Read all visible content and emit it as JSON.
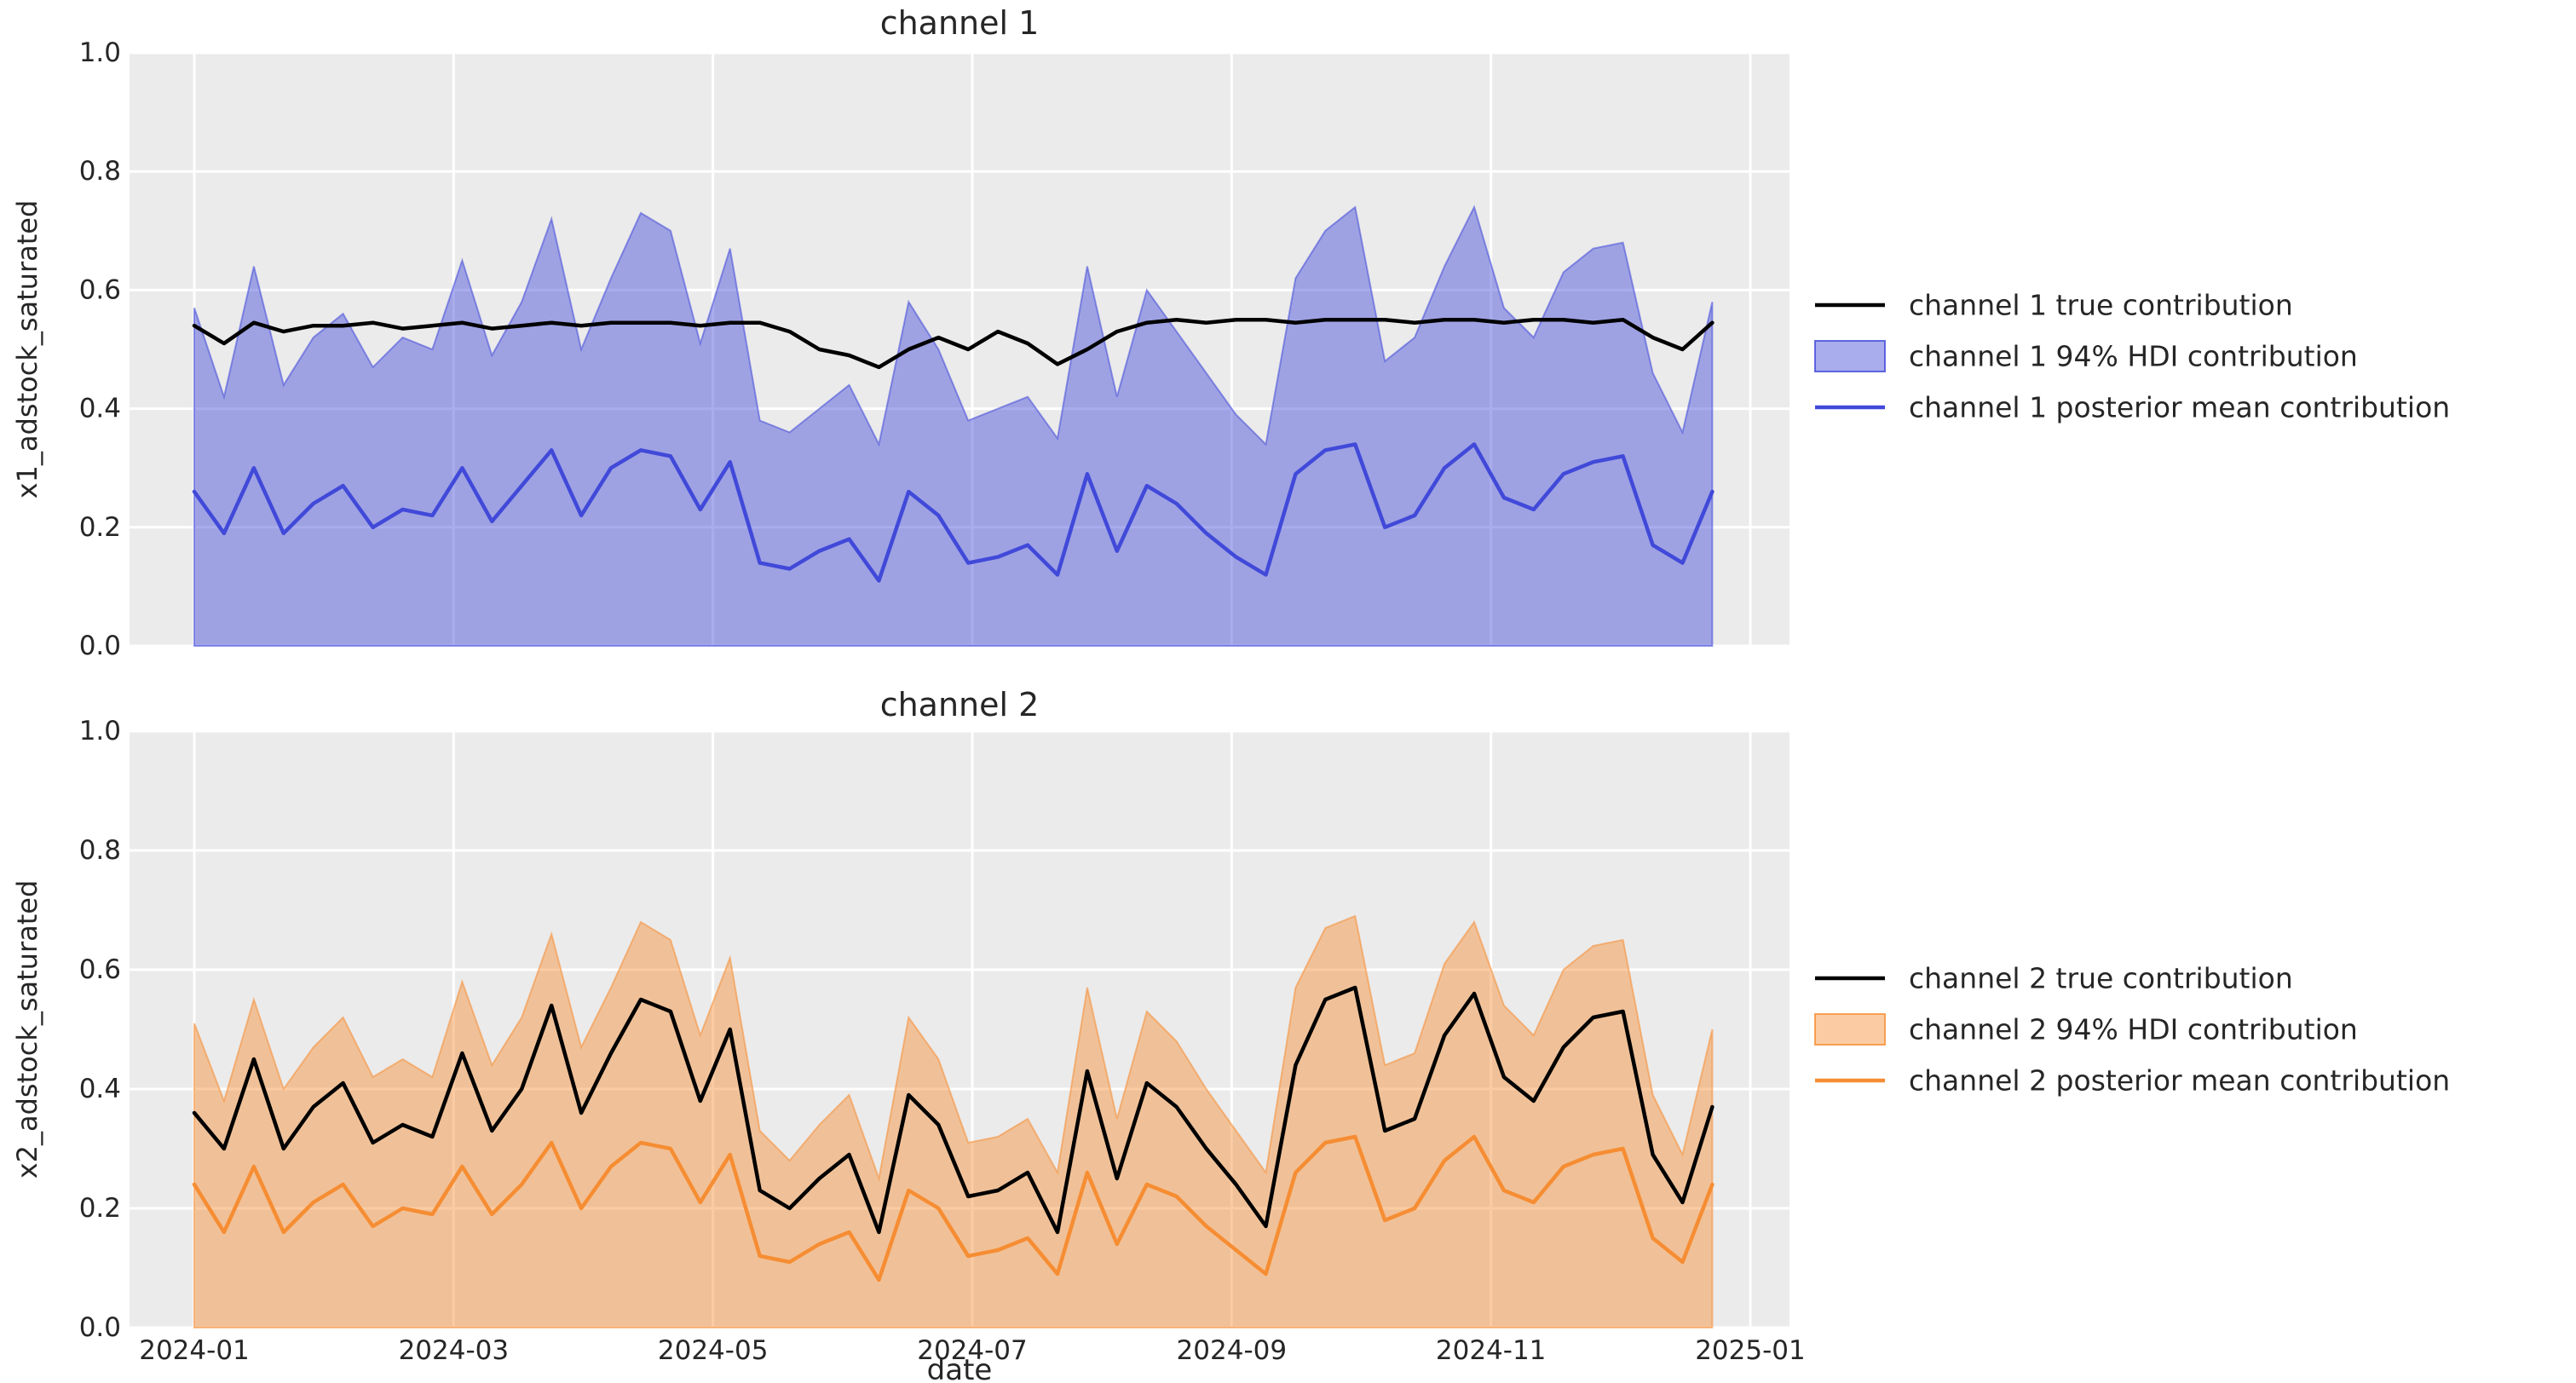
{
  "figure": {
    "background": "#ffffff",
    "plot_background": "#ebebeb",
    "grid_color": "#ffffff",
    "text_color": "#262626",
    "true_line_color": "#000000",
    "channel1_color": "#4149d9",
    "channel1_fill": "rgba(65,73,217,0.45)",
    "channel2_color": "#f68d33",
    "channel2_fill": "rgba(246,141,51,0.45)"
  },
  "chart_data": [
    {
      "type": "area",
      "title": "channel 1",
      "xlabel": "",
      "ylabel": "x1_adstock_saturated",
      "ylim": [
        0.0,
        1.0
      ],
      "y_tick_values": [
        0.0,
        0.2,
        0.4,
        0.6,
        0.8,
        1.0
      ],
      "y_ticks": [
        "0.0",
        "0.2",
        "0.4",
        "0.6",
        "0.8",
        "1.0"
      ],
      "x_ticks": [
        "2024-01",
        "2024-03",
        "2024-05",
        "2024-07",
        "2024-09",
        "2024-11",
        "2025-01"
      ],
      "show_x_tick_labels": false,
      "grid": true,
      "legend_position": "right",
      "x": [
        "2024-01-01",
        "2024-01-08",
        "2024-01-15",
        "2024-01-22",
        "2024-01-29",
        "2024-02-05",
        "2024-02-12",
        "2024-02-19",
        "2024-02-26",
        "2024-03-04",
        "2024-03-11",
        "2024-03-18",
        "2024-03-25",
        "2024-04-01",
        "2024-04-08",
        "2024-04-15",
        "2024-04-22",
        "2024-04-29",
        "2024-05-06",
        "2024-05-13",
        "2024-05-20",
        "2024-05-27",
        "2024-06-03",
        "2024-06-10",
        "2024-06-17",
        "2024-06-24",
        "2024-07-01",
        "2024-07-08",
        "2024-07-15",
        "2024-07-22",
        "2024-07-29",
        "2024-08-05",
        "2024-08-12",
        "2024-08-19",
        "2024-08-26",
        "2024-09-02",
        "2024-09-09",
        "2024-09-16",
        "2024-09-23",
        "2024-09-30",
        "2024-10-07",
        "2024-10-14",
        "2024-10-21",
        "2024-10-28",
        "2024-11-04",
        "2024-11-11",
        "2024-11-18",
        "2024-11-25",
        "2024-12-02",
        "2024-12-09",
        "2024-12-16",
        "2024-12-23"
      ],
      "series": [
        {
          "name": "channel 1 true contribution",
          "role": "true",
          "swatch": "line",
          "color": "#000000",
          "values": [
            0.54,
            0.51,
            0.545,
            0.53,
            0.54,
            0.54,
            0.545,
            0.535,
            0.54,
            0.545,
            0.535,
            0.54,
            0.545,
            0.54,
            0.545,
            0.545,
            0.545,
            0.54,
            0.545,
            0.545,
            0.53,
            0.5,
            0.49,
            0.47,
            0.5,
            0.52,
            0.5,
            0.53,
            0.51,
            0.475,
            0.5,
            0.53,
            0.545,
            0.55,
            0.545,
            0.55,
            0.55,
            0.545,
            0.55,
            0.55,
            0.55,
            0.545,
            0.55,
            0.55,
            0.545,
            0.55,
            0.55,
            0.545,
            0.55,
            0.52,
            0.5,
            0.545
          ]
        },
        {
          "name": "channel 1 94% HDI contribution",
          "role": "hdi",
          "swatch": "patch",
          "color": "#4149d9",
          "fill": "rgba(65,73,217,0.45)",
          "lower": 0,
          "upper": [
            0.57,
            0.42,
            0.64,
            0.44,
            0.52,
            0.56,
            0.47,
            0.52,
            0.5,
            0.65,
            0.49,
            0.58,
            0.72,
            0.5,
            0.62,
            0.73,
            0.7,
            0.51,
            0.67,
            0.38,
            0.36,
            0.4,
            0.44,
            0.34,
            0.58,
            0.5,
            0.38,
            0.4,
            0.42,
            0.35,
            0.64,
            0.42,
            0.6,
            0.53,
            0.46,
            0.39,
            0.34,
            0.62,
            0.7,
            0.74,
            0.48,
            0.52,
            0.64,
            0.74,
            0.57,
            0.52,
            0.63,
            0.67,
            0.68,
            0.46,
            0.36,
            0.58
          ]
        },
        {
          "name": "channel 1 posterior mean contribution",
          "role": "mean",
          "swatch": "line",
          "color": "#4149d9",
          "values": [
            0.26,
            0.19,
            0.3,
            0.19,
            0.24,
            0.27,
            0.2,
            0.23,
            0.22,
            0.3,
            0.21,
            0.27,
            0.33,
            0.22,
            0.3,
            0.33,
            0.32,
            0.23,
            0.31,
            0.14,
            0.13,
            0.16,
            0.18,
            0.11,
            0.26,
            0.22,
            0.14,
            0.15,
            0.17,
            0.12,
            0.29,
            0.16,
            0.27,
            0.24,
            0.19,
            0.15,
            0.12,
            0.29,
            0.33,
            0.34,
            0.2,
            0.22,
            0.3,
            0.34,
            0.25,
            0.23,
            0.29,
            0.31,
            0.32,
            0.17,
            0.14,
            0.26
          ]
        }
      ]
    },
    {
      "type": "area",
      "title": "channel 2",
      "xlabel": "date",
      "ylabel": "x2_adstock_saturated",
      "ylim": [
        0.0,
        1.0
      ],
      "y_tick_values": [
        0.0,
        0.2,
        0.4,
        0.6,
        0.8,
        1.0
      ],
      "y_ticks": [
        "0.0",
        "0.2",
        "0.4",
        "0.6",
        "0.8",
        "1.0"
      ],
      "x_ticks": [
        "2024-01",
        "2024-03",
        "2024-05",
        "2024-07",
        "2024-09",
        "2024-11",
        "2025-01"
      ],
      "show_x_tick_labels": true,
      "grid": true,
      "legend_position": "right",
      "x": [
        "2024-01-01",
        "2024-01-08",
        "2024-01-15",
        "2024-01-22",
        "2024-01-29",
        "2024-02-05",
        "2024-02-12",
        "2024-02-19",
        "2024-02-26",
        "2024-03-04",
        "2024-03-11",
        "2024-03-18",
        "2024-03-25",
        "2024-04-01",
        "2024-04-08",
        "2024-04-15",
        "2024-04-22",
        "2024-04-29",
        "2024-05-06",
        "2024-05-13",
        "2024-05-20",
        "2024-05-27",
        "2024-06-03",
        "2024-06-10",
        "2024-06-17",
        "2024-06-24",
        "2024-07-01",
        "2024-07-08",
        "2024-07-15",
        "2024-07-22",
        "2024-07-29",
        "2024-08-05",
        "2024-08-12",
        "2024-08-19",
        "2024-08-26",
        "2024-09-02",
        "2024-09-09",
        "2024-09-16",
        "2024-09-23",
        "2024-09-30",
        "2024-10-07",
        "2024-10-14",
        "2024-10-21",
        "2024-10-28",
        "2024-11-04",
        "2024-11-11",
        "2024-11-18",
        "2024-11-25",
        "2024-12-02",
        "2024-12-09",
        "2024-12-16",
        "2024-12-23"
      ],
      "series": [
        {
          "name": "channel 2 true contribution",
          "role": "true",
          "swatch": "line",
          "color": "#000000",
          "values": [
            0.36,
            0.3,
            0.45,
            0.3,
            0.37,
            0.41,
            0.31,
            0.34,
            0.32,
            0.46,
            0.33,
            0.4,
            0.54,
            0.36,
            0.46,
            0.55,
            0.53,
            0.38,
            0.5,
            0.23,
            0.2,
            0.25,
            0.29,
            0.16,
            0.39,
            0.34,
            0.22,
            0.23,
            0.26,
            0.16,
            0.43,
            0.25,
            0.41,
            0.37,
            0.3,
            0.24,
            0.17,
            0.44,
            0.55,
            0.57,
            0.33,
            0.35,
            0.49,
            0.56,
            0.42,
            0.38,
            0.47,
            0.52,
            0.53,
            0.29,
            0.21,
            0.37
          ]
        },
        {
          "name": "channel 2 94% HDI contribution",
          "role": "hdi",
          "swatch": "patch",
          "color": "#f68d33",
          "fill": "rgba(246,141,51,0.45)",
          "lower": 0,
          "upper": [
            0.51,
            0.38,
            0.55,
            0.4,
            0.47,
            0.52,
            0.42,
            0.45,
            0.42,
            0.58,
            0.44,
            0.52,
            0.66,
            0.47,
            0.57,
            0.68,
            0.65,
            0.49,
            0.62,
            0.33,
            0.28,
            0.34,
            0.39,
            0.25,
            0.52,
            0.45,
            0.31,
            0.32,
            0.35,
            0.26,
            0.57,
            0.35,
            0.53,
            0.48,
            0.4,
            0.33,
            0.26,
            0.57,
            0.67,
            0.69,
            0.44,
            0.46,
            0.61,
            0.68,
            0.54,
            0.49,
            0.6,
            0.64,
            0.65,
            0.39,
            0.29,
            0.5
          ]
        },
        {
          "name": "channel 2 posterior mean contribution",
          "role": "mean",
          "swatch": "line",
          "color": "#f68d33",
          "values": [
            0.24,
            0.16,
            0.27,
            0.16,
            0.21,
            0.24,
            0.17,
            0.2,
            0.19,
            0.27,
            0.19,
            0.24,
            0.31,
            0.2,
            0.27,
            0.31,
            0.3,
            0.21,
            0.29,
            0.12,
            0.11,
            0.14,
            0.16,
            0.08,
            0.23,
            0.2,
            0.12,
            0.13,
            0.15,
            0.09,
            0.26,
            0.14,
            0.24,
            0.22,
            0.17,
            0.13,
            0.09,
            0.26,
            0.31,
            0.32,
            0.18,
            0.2,
            0.28,
            0.32,
            0.23,
            0.21,
            0.27,
            0.29,
            0.3,
            0.15,
            0.11,
            0.24
          ]
        }
      ]
    }
  ]
}
